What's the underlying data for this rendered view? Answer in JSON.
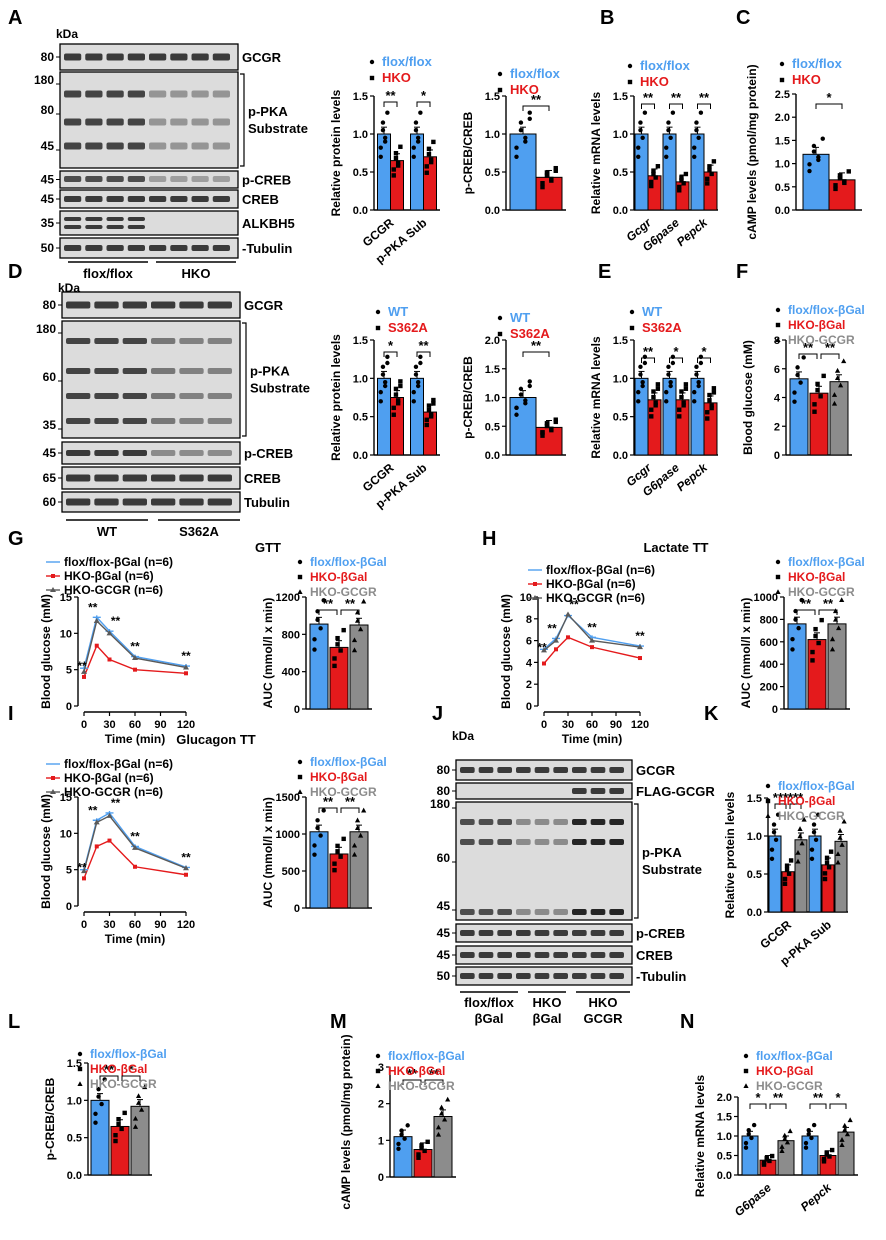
{
  "colors": {
    "blue": "#4f9ff0",
    "red": "#e41a1c",
    "gray": "#8c8c8c",
    "black": "#000000"
  },
  "panels": {
    "A": {
      "label": "A",
      "kda": "kDa",
      "blot": {
        "rows": [
          {
            "mw": [
              "80"
            ],
            "name": "GCGR"
          },
          {
            "mw": [
              "180",
              "80",
              "45"
            ],
            "name": "p-PKA Substrate"
          },
          {
            "mw": [
              "45"
            ],
            "name": "p-CREB"
          },
          {
            "mw": [
              "45"
            ],
            "name": "CREB"
          },
          {
            "mw": [
              "35"
            ],
            "name": "ALKBH5"
          },
          {
            "mw": [
              "50"
            ],
            "name": "Tubulin"
          }
        ],
        "groups": [
          "flox/flox",
          "HKO"
        ]
      }
    },
    "D": {
      "label": "D",
      "kda": "kDa",
      "blot": {
        "rows": [
          {
            "mw": [
              "80"
            ],
            "name": "GCGR"
          },
          {
            "mw": [
              "180",
              "60",
              "35"
            ],
            "name": "p-PKA Substrate"
          },
          {
            "mw": [
              "45"
            ],
            "name": "p-CREB"
          },
          {
            "mw": [
              "65"
            ],
            "name": "CREB"
          },
          {
            "mw": [
              "60"
            ],
            "name": "Tubulin"
          }
        ],
        "groups": [
          "WT",
          "S362A"
        ]
      }
    },
    "J": {
      "label": "J",
      "kda": "kDa",
      "blot": {
        "rows": [
          {
            "mw": [
              "80"
            ],
            "name": "GCGR"
          },
          {
            "mw": [
              "80"
            ],
            "name": "FLAG-GCGR"
          },
          {
            "mw": [
              "180",
              "60",
              "45"
            ],
            "name": "p-PKA Substrate"
          },
          {
            "mw": [
              "45"
            ],
            "name": "p-CREB"
          },
          {
            "mw": [
              "45"
            ],
            "name": "CREB"
          },
          {
            "mw": [
              "50"
            ],
            "name": "Tubulin"
          }
        ],
        "groups": [
          "flox/flox βGal",
          "HKO βGal",
          "HKO GCGR"
        ]
      }
    }
  },
  "chart_data": [
    {
      "id": "A1",
      "type": "bar",
      "panel": "A",
      "ylabel": "Relative protein levels",
      "ylim": [
        0,
        1.5
      ],
      "yticks": [
        "0.0",
        "0.5",
        "1.0",
        "1.5"
      ],
      "categories": [
        "GCGR",
        "p-PKA Sub"
      ],
      "series": [
        {
          "name": "flox/flox",
          "values": [
            1.0,
            1.0
          ]
        },
        {
          "name": "HKO",
          "values": [
            0.65,
            0.7
          ]
        }
      ],
      "significance": [
        "**",
        "*"
      ]
    },
    {
      "id": "A2",
      "type": "bar",
      "panel": "A",
      "ylabel": "p-CREB/CREB",
      "ylim": [
        0,
        1.5
      ],
      "yticks": [
        "0.0",
        "0.5",
        "1.0",
        "1.5"
      ],
      "categories": [
        ""
      ],
      "series": [
        {
          "name": "flox/flox",
          "values": [
            1.0
          ]
        },
        {
          "name": "HKO",
          "values": [
            0.43
          ]
        }
      ],
      "significance": [
        "**"
      ]
    },
    {
      "id": "B",
      "type": "bar",
      "panel": "B",
      "ylabel": "Relative mRNA levels",
      "ylim": [
        0,
        1.5
      ],
      "yticks": [
        "0.0",
        "0.5",
        "1.0",
        "1.5"
      ],
      "categories": [
        "Gcgr",
        "G6pase",
        "Pepck"
      ],
      "series": [
        {
          "name": "flox/flox",
          "values": [
            1.0,
            1.0,
            1.0
          ]
        },
        {
          "name": "HKO",
          "values": [
            0.45,
            0.37,
            0.5
          ]
        }
      ],
      "significance": [
        "**",
        "**",
        "**"
      ]
    },
    {
      "id": "C",
      "type": "bar",
      "panel": "C",
      "ylabel": "cAMP levels (pmol/mg protein)",
      "ylim": [
        0,
        2.5
      ],
      "yticks": [
        "0.0",
        "0.5",
        "1.0",
        "1.5",
        "2.0",
        "2.5"
      ],
      "categories": [
        ""
      ],
      "series": [
        {
          "name": "flox/flox",
          "values": [
            1.2
          ]
        },
        {
          "name": "HKO",
          "values": [
            0.65
          ]
        }
      ],
      "significance": [
        "*"
      ]
    },
    {
      "id": "D1",
      "type": "bar",
      "panel": "D",
      "ylabel": "Relative protein levels",
      "ylim": [
        0,
        1.5
      ],
      "yticks": [
        "0.0",
        "0.5",
        "1.0",
        "1.5"
      ],
      "categories": [
        "GCGR",
        "p-PKA Sub"
      ],
      "series": [
        {
          "name": "WT",
          "values": [
            1.0,
            1.0
          ]
        },
        {
          "name": "S362A",
          "values": [
            0.75,
            0.56
          ]
        }
      ],
      "significance": [
        "*",
        "**"
      ]
    },
    {
      "id": "D2",
      "type": "bar",
      "panel": "D",
      "ylabel": "p-CREB/CREB",
      "ylim": [
        0,
        2.0
      ],
      "yticks": [
        "0.0",
        "0.5",
        "1.0",
        "1.5",
        "2.0"
      ],
      "categories": [
        ""
      ],
      "series": [
        {
          "name": "WT",
          "values": [
            1.0
          ]
        },
        {
          "name": "S362A",
          "values": [
            0.48
          ]
        }
      ],
      "significance": [
        "**"
      ]
    },
    {
      "id": "E",
      "type": "bar",
      "panel": "E",
      "ylabel": "Relative mRNA levels",
      "ylim": [
        0,
        1.5
      ],
      "yticks": [
        "0.0",
        "0.5",
        "1.0",
        "1.5"
      ],
      "categories": [
        "Gcgr",
        "G6pase",
        "Pepck"
      ],
      "series": [
        {
          "name": "WT",
          "values": [
            1.0,
            1.0,
            1.0
          ]
        },
        {
          "name": "S362A",
          "values": [
            0.72,
            0.72,
            0.68
          ]
        }
      ],
      "significance": [
        "**",
        "*",
        "*"
      ]
    },
    {
      "id": "F",
      "type": "bar",
      "panel": "F",
      "ylabel": "Blood glucose (mM)",
      "ylim": [
        0,
        8
      ],
      "yticks": [
        "0",
        "2",
        "4",
        "6",
        "8"
      ],
      "categories": [
        ""
      ],
      "series": [
        {
          "name": "flox/flox-βGal",
          "values": [
            5.3
          ]
        },
        {
          "name": "HKO-βGal",
          "values": [
            4.3
          ]
        },
        {
          "name": "HKO-GCGR",
          "values": [
            5.1
          ]
        }
      ],
      "significance": [
        "**",
        "**"
      ]
    },
    {
      "id": "G1",
      "type": "line",
      "panel": "G",
      "ylabel": "Blood glucose (mM)",
      "xlabel": "Time (min)",
      "xlim": [
        0,
        120
      ],
      "ylim": [
        0,
        15
      ],
      "xticks": [
        "0",
        "30",
        "60",
        "90",
        "120"
      ],
      "yticks": [
        "0",
        "5",
        "10",
        "15"
      ],
      "x": [
        0,
        15,
        30,
        60,
        120
      ],
      "series": [
        {
          "name": "flox/flox-βGal (n=6)",
          "values": [
            5.2,
            12.2,
            10.3,
            6.8,
            5.5
          ]
        },
        {
          "name": "HKO-βGal (n=6)",
          "values": [
            4.0,
            8.3,
            6.4,
            5.0,
            4.5
          ]
        },
        {
          "name": "HKO-GCGR (n=6)",
          "values": [
            4.7,
            11.7,
            10.0,
            6.6,
            5.3
          ]
        }
      ],
      "significance": [
        {
          "x": 0,
          "text": "**"
        },
        {
          "x": 15,
          "text": "**"
        },
        {
          "x": 30,
          "text": "**"
        },
        {
          "x": 60,
          "text": "**"
        },
        {
          "x": 120,
          "text": "**"
        }
      ]
    },
    {
      "id": "G2",
      "type": "bar",
      "panel": "G",
      "title": "GTT",
      "ylabel": "AUC (mmol/l x min)",
      "ylim": [
        0,
        1200
      ],
      "yticks": [
        "0",
        "400",
        "800",
        "1200"
      ],
      "categories": [
        ""
      ],
      "series": [
        {
          "name": "flox/flox-βGal",
          "values": [
            910
          ]
        },
        {
          "name": "HKO-βGal",
          "values": [
            660
          ]
        },
        {
          "name": "HKO-GCGR",
          "values": [
            900
          ]
        }
      ],
      "significance": [
        "**",
        "**"
      ]
    },
    {
      "id": "H1",
      "type": "line",
      "panel": "H",
      "title": "Lactate TT",
      "ylabel": "Blood glucose (mM)",
      "xlabel": "Time (min)",
      "xlim": [
        0,
        120
      ],
      "ylim": [
        0,
        10
      ],
      "xticks": [
        "0",
        "30",
        "60",
        "90",
        "120"
      ],
      "yticks": [
        "0",
        "2",
        "4",
        "6",
        "8",
        "10"
      ],
      "x": [
        0,
        15,
        30,
        60,
        120
      ],
      "series": [
        {
          "name": "flox/flox-βGal (n=6)",
          "values": [
            5.2,
            6.2,
            8.3,
            6.3,
            5.5
          ]
        },
        {
          "name": "HKO-βGal (n=6)",
          "values": [
            3.9,
            5.2,
            6.3,
            5.4,
            4.4
          ]
        },
        {
          "name": "HKO-GCGR (n=6)",
          "values": [
            5.1,
            6.0,
            8.4,
            6.0,
            5.4
          ]
        }
      ],
      "significance": [
        {
          "x": 0,
          "text": "**"
        },
        {
          "x": 15,
          "text": "**"
        },
        {
          "x": 30,
          "text": "**"
        },
        {
          "x": 60,
          "text": "**"
        },
        {
          "x": 120,
          "text": "**"
        }
      ]
    },
    {
      "id": "H2",
      "type": "bar",
      "panel": "H",
      "ylabel": "AUC (mmol/l x min)",
      "ylim": [
        0,
        1000
      ],
      "yticks": [
        "0",
        "200",
        "400",
        "600",
        "800",
        "1000"
      ],
      "categories": [
        ""
      ],
      "series": [
        {
          "name": "flox/flox-βGal",
          "values": [
            760
          ]
        },
        {
          "name": "HKO-βGal",
          "values": [
            620
          ]
        },
        {
          "name": "HKO-GCGR",
          "values": [
            760
          ]
        }
      ],
      "significance": [
        "**",
        "**"
      ]
    },
    {
      "id": "I1",
      "type": "line",
      "panel": "I",
      "title": "Glucagon TT",
      "ylabel": "Blood glucose (mM)",
      "xlabel": "Time (min)",
      "xlim": [
        0,
        120
      ],
      "ylim": [
        0,
        15
      ],
      "xticks": [
        "0",
        "30",
        "60",
        "90",
        "120"
      ],
      "yticks": [
        "0",
        "5",
        "10",
        "15"
      ],
      "x": [
        0,
        15,
        30,
        60,
        120
      ],
      "series": [
        {
          "name": "flox/flox-βGal (n=6)",
          "values": [
            5.0,
            11.8,
            12.8,
            8.2,
            5.3
          ]
        },
        {
          "name": "HKO-βGal (n=6)",
          "values": [
            3.8,
            8.2,
            9.0,
            5.4,
            4.3
          ]
        },
        {
          "name": "HKO-GCGR (n=6)",
          "values": [
            4.8,
            11.5,
            12.4,
            8.0,
            5.2
          ]
        }
      ],
      "significance": [
        {
          "x": 0,
          "text": "**"
        },
        {
          "x": 15,
          "text": "**"
        },
        {
          "x": 30,
          "text": "**"
        },
        {
          "x": 60,
          "text": "**"
        },
        {
          "x": 120,
          "text": "**"
        }
      ]
    },
    {
      "id": "I2",
      "type": "bar",
      "panel": "I",
      "ylabel": "AUC (mmol/l x min)",
      "ylim": [
        0,
        1500
      ],
      "yticks": [
        "0",
        "500",
        "1000",
        "1500"
      ],
      "categories": [
        ""
      ],
      "series": [
        {
          "name": "flox/flox-βGal",
          "values": [
            1030
          ]
        },
        {
          "name": "HKO-βGal",
          "values": [
            730
          ]
        },
        {
          "name": "HKO-GCGR",
          "values": [
            1030
          ]
        }
      ],
      "significance": [
        "**",
        "**"
      ]
    },
    {
      "id": "K",
      "type": "bar",
      "panel": "K",
      "ylabel": "Relative protein levels",
      "ylim": [
        0,
        1.5
      ],
      "yticks": [
        "0.0",
        "0.5",
        "1.0",
        "1.5"
      ],
      "categories": [
        "GCGR",
        "p-PKA Sub"
      ],
      "series": [
        {
          "name": "flox/flox-βGal",
          "values": [
            1.0,
            1.0
          ]
        },
        {
          "name": "HKO-βGal",
          "values": [
            0.53,
            0.62
          ]
        },
        {
          "name": "HKO-GCGR",
          "values": [
            0.95,
            0.93
          ]
        }
      ],
      "significance": [
        "***",
        "***"
      ]
    },
    {
      "id": "L",
      "type": "bar",
      "panel": "L",
      "ylabel": "p-CREB/CREB",
      "ylim": [
        0,
        1.5
      ],
      "yticks": [
        "0.0",
        "0.5",
        "1.0",
        "1.5"
      ],
      "categories": [
        ""
      ],
      "series": [
        {
          "name": "flox/flox-βGal",
          "values": [
            1.0
          ]
        },
        {
          "name": "HKO-βGal",
          "values": [
            0.65
          ]
        },
        {
          "name": "HKO-GCGR",
          "values": [
            0.92
          ]
        }
      ],
      "significance": [
        "**",
        "*"
      ]
    },
    {
      "id": "M",
      "type": "bar",
      "panel": "M",
      "ylabel": "cAMP levels (pmol/mg protein)",
      "ylim": [
        0,
        3
      ],
      "yticks": [
        "0",
        "1",
        "2",
        "3"
      ],
      "categories": [
        ""
      ],
      "series": [
        {
          "name": "flox/flox-βGal",
          "values": [
            1.1
          ]
        },
        {
          "name": "HKO-βGal",
          "values": [
            0.75
          ]
        },
        {
          "name": "HKO-GCGR",
          "values": [
            1.65
          ]
        }
      ],
      "significance": [
        "**",
        "**"
      ]
    },
    {
      "id": "N",
      "type": "bar",
      "panel": "N",
      "ylabel": "Relative mRNA levels",
      "ylim": [
        0,
        2.0
      ],
      "yticks": [
        "0.0",
        "0.5",
        "1.0",
        "1.5",
        "2.0"
      ],
      "categories": [
        "G6pase",
        "Pepck"
      ],
      "series": [
        {
          "name": "flox/flox-βGal",
          "values": [
            1.0,
            1.0
          ]
        },
        {
          "name": "HKO-βGal",
          "values": [
            0.38,
            0.5
          ]
        },
        {
          "name": "HKO-GCGR",
          "values": [
            0.88,
            1.1
          ]
        }
      ],
      "significance": [
        "*",
        "**",
        "**",
        "*"
      ]
    }
  ]
}
